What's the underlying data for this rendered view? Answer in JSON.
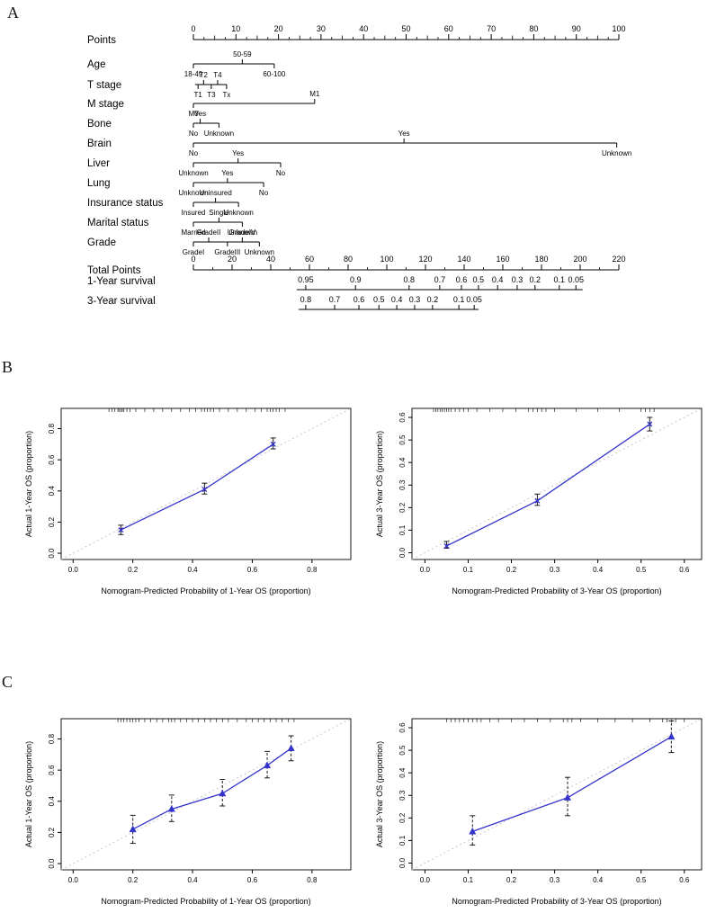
{
  "panels": {
    "a": "A",
    "b": "B",
    "c": "C"
  },
  "colors": {
    "line_blue": "#3434cc",
    "ref_gray": "#c8c8c8",
    "axis_black": "#000000",
    "err_black": "#1a1a1a"
  },
  "nomogram": {
    "points_axis": {
      "label": "Points",
      "min": 0,
      "max": 100,
      "step": 10,
      "minor": 2.5
    },
    "rows": [
      {
        "label": "Age",
        "start": 0,
        "end": 19,
        "ticks": [
          {
            "pos": 0,
            "text": "18-49",
            "side": "below"
          },
          {
            "pos": 11.5,
            "text": "50-59",
            "side": "above"
          },
          {
            "pos": 19,
            "text": "60-100",
            "side": "below"
          }
        ]
      },
      {
        "label": "T stage",
        "start": 0.4,
        "end": 7.8,
        "ticks": [
          {
            "pos": 1.1,
            "text": "T1",
            "side": "below"
          },
          {
            "pos": 2.4,
            "text": "T2",
            "side": "above"
          },
          {
            "pos": 4.2,
            "text": "T3",
            "side": "below"
          },
          {
            "pos": 5.7,
            "text": "T4",
            "side": "above"
          },
          {
            "pos": 7.8,
            "text": "Tx",
            "side": "below"
          }
        ]
      },
      {
        "label": "M stage",
        "start": 0,
        "end": 28.5,
        "ticks": [
          {
            "pos": 0,
            "text": "M0",
            "side": "below"
          },
          {
            "pos": 28.5,
            "text": "M1",
            "side": "above"
          }
        ]
      },
      {
        "label": "Bone",
        "start": 0,
        "end": 6,
        "ticks": [
          {
            "pos": 0,
            "text": "No",
            "side": "below"
          },
          {
            "pos": 1.6,
            "text": "Yes",
            "side": "above"
          },
          {
            "pos": 6,
            "text": "Unknown",
            "side": "below"
          }
        ]
      },
      {
        "label": "Brain",
        "start": 0,
        "end": 99.5,
        "ticks": [
          {
            "pos": 0,
            "text": "No",
            "side": "below"
          },
          {
            "pos": 49.5,
            "text": "Yes",
            "side": "above"
          },
          {
            "pos": 99.5,
            "text": "Unknown",
            "side": "below"
          }
        ]
      },
      {
        "label": "Liver",
        "start": 0,
        "end": 20.5,
        "ticks": [
          {
            "pos": 0,
            "text": "Unknown",
            "side": "below"
          },
          {
            "pos": 10.5,
            "text": "Yes",
            "side": "above"
          },
          {
            "pos": 20.5,
            "text": "No",
            "side": "below"
          }
        ]
      },
      {
        "label": "Lung",
        "start": 0,
        "end": 16.5,
        "ticks": [
          {
            "pos": 0,
            "text": "Unknown",
            "side": "below"
          },
          {
            "pos": 8,
            "text": "Yes",
            "side": "above"
          },
          {
            "pos": 16.5,
            "text": "No",
            "side": "below"
          }
        ]
      },
      {
        "label": "Insurance status",
        "start": 0,
        "end": 10.6,
        "ticks": [
          {
            "pos": 0,
            "text": "Insured",
            "side": "below"
          },
          {
            "pos": 5.2,
            "text": "Uninsured",
            "side": "above"
          },
          {
            "pos": 10.6,
            "text": "Unknown",
            "side": "below"
          }
        ]
      },
      {
        "label": "Marital status",
        "start": 0,
        "end": 11.5,
        "ticks": [
          {
            "pos": 0,
            "text": "Married",
            "side": "below"
          },
          {
            "pos": 6,
            "text": "Single",
            "side": "above"
          },
          {
            "pos": 11.5,
            "text": "Unknown",
            "side": "below"
          }
        ]
      },
      {
        "label": "Grade",
        "start": 0,
        "end": 15.5,
        "ticks": [
          {
            "pos": 0,
            "text": "GradeI",
            "side": "below"
          },
          {
            "pos": 3.6,
            "text": "GradeII",
            "side": "above"
          },
          {
            "pos": 8,
            "text": "GradeIII",
            "side": "below"
          },
          {
            "pos": 11.5,
            "text": "GradeIV",
            "side": "above"
          },
          {
            "pos": 15.5,
            "text": "Unknown",
            "side": "below"
          }
        ]
      }
    ],
    "total_points_axis": {
      "label": "Total Points",
      "min": 0,
      "max": 220,
      "step": 20
    },
    "survival_axes": [
      {
        "label": "1-Year survival",
        "start": 24.3,
        "end": 91.5,
        "ticks": [
          {
            "pos": 26.4,
            "text": "0.95"
          },
          {
            "pos": 38.1,
            "text": "0.9"
          },
          {
            "pos": 50.7,
            "text": "0.8"
          },
          {
            "pos": 57.9,
            "text": "0.7"
          },
          {
            "pos": 63.0,
            "text": "0.6"
          },
          {
            "pos": 67.0,
            "text": "0.5"
          },
          {
            "pos": 71.5,
            "text": "0.4"
          },
          {
            "pos": 76.1,
            "text": "0.3"
          },
          {
            "pos": 80.3,
            "text": "0.2"
          },
          {
            "pos": 86.0,
            "text": "0.1"
          },
          {
            "pos": 89.9,
            "text": "0.05"
          }
        ]
      },
      {
        "label": "3-Year survival",
        "start": 24.7,
        "end": 67.0,
        "ticks": [
          {
            "pos": 26.4,
            "text": "0.8"
          },
          {
            "pos": 33.2,
            "text": "0.7"
          },
          {
            "pos": 38.9,
            "text": "0.6"
          },
          {
            "pos": 43.6,
            "text": "0.5"
          },
          {
            "pos": 47.8,
            "text": "0.4"
          },
          {
            "pos": 52.0,
            "text": "0.3"
          },
          {
            "pos": 56.2,
            "text": "0.2"
          },
          {
            "pos": 62.4,
            "text": "0.1"
          },
          {
            "pos": 66.0,
            "text": "0.05"
          }
        ]
      }
    ]
  },
  "chart_data": [
    {
      "id": "cal-b1",
      "type": "line",
      "panel": "B",
      "marker": "cross",
      "err_style": "solid",
      "xlabel": "Nomogram-Predicted Probability of 1-Year OS (proportion)",
      "ylabel": "Actual 1-Year OS (proportion)",
      "xlim": [
        -0.04,
        0.93
      ],
      "ylim": [
        -0.04,
        0.93
      ],
      "xticks": [
        "0.0",
        "0.2",
        "0.4",
        "0.6",
        "0.8"
      ],
      "yticks": [
        "0.0",
        "0.2",
        "0.4",
        "0.6",
        "0.8"
      ],
      "x": [
        0.16,
        0.44,
        0.67
      ],
      "y": [
        0.15,
        0.41,
        0.7
      ],
      "err_low": [
        0.12,
        0.38,
        0.67
      ],
      "err_high": [
        0.18,
        0.45,
        0.74
      ],
      "rug": [
        0.12,
        0.13,
        0.14,
        0.15,
        0.155,
        0.16,
        0.165,
        0.17,
        0.18,
        0.19,
        0.21,
        0.24,
        0.27,
        0.3,
        0.33,
        0.36,
        0.39,
        0.41,
        0.43,
        0.44,
        0.45,
        0.46,
        0.47,
        0.49,
        0.52,
        0.55,
        0.58,
        0.61,
        0.63,
        0.65,
        0.66,
        0.67,
        0.68,
        0.69,
        0.71
      ]
    },
    {
      "id": "cal-b2",
      "type": "line",
      "panel": "B",
      "marker": "cross",
      "err_style": "solid",
      "xlabel": "Nomogram-Predicted Probability of 3-Year OS (proportion)",
      "ylabel": "Actual 3-Year OS (proportion)",
      "xlim": [
        -0.03,
        0.64
      ],
      "ylim": [
        -0.03,
        0.64
      ],
      "xticks": [
        "0.0",
        "0.1",
        "0.2",
        "0.3",
        "0.4",
        "0.5",
        "0.6"
      ],
      "yticks": [
        "0.0",
        "0.1",
        "0.2",
        "0.3",
        "0.4",
        "0.5",
        "0.6"
      ],
      "x": [
        0.05,
        0.26,
        0.52
      ],
      "y": [
        0.03,
        0.23,
        0.57
      ],
      "err_low": [
        0.02,
        0.21,
        0.54
      ],
      "err_high": [
        0.05,
        0.26,
        0.6
      ],
      "rug": [
        0.02,
        0.025,
        0.03,
        0.035,
        0.04,
        0.045,
        0.05,
        0.055,
        0.06,
        0.07,
        0.08,
        0.09,
        0.1,
        0.12,
        0.15,
        0.18,
        0.21,
        0.24,
        0.25,
        0.26,
        0.27,
        0.28,
        0.3,
        0.35,
        0.4,
        0.45,
        0.5,
        0.51,
        0.52,
        0.53
      ]
    },
    {
      "id": "cal-c1",
      "type": "line",
      "panel": "C",
      "marker": "triangle",
      "err_style": "dashed",
      "xlabel": "Nomogram-Predicted Probability of 1-Year OS (proportion)",
      "ylabel": "Actual 1-Year OS (proportion)",
      "xlim": [
        -0.04,
        0.93
      ],
      "ylim": [
        -0.04,
        0.93
      ],
      "xticks": [
        "0.0",
        "0.2",
        "0.4",
        "0.6",
        "0.8"
      ],
      "yticks": [
        "0.0",
        "0.2",
        "0.4",
        "0.6",
        "0.8"
      ],
      "x": [
        0.2,
        0.33,
        0.5,
        0.65,
        0.73
      ],
      "y": [
        0.22,
        0.35,
        0.45,
        0.63,
        0.74
      ],
      "err_low": [
        0.13,
        0.27,
        0.37,
        0.55,
        0.66
      ],
      "err_high": [
        0.31,
        0.44,
        0.54,
        0.72,
        0.82
      ],
      "rug": [
        0.15,
        0.16,
        0.17,
        0.18,
        0.19,
        0.2,
        0.21,
        0.22,
        0.24,
        0.26,
        0.28,
        0.3,
        0.32,
        0.33,
        0.34,
        0.36,
        0.38,
        0.4,
        0.42,
        0.44,
        0.46,
        0.48,
        0.5,
        0.52,
        0.55,
        0.58,
        0.6,
        0.62,
        0.64,
        0.66,
        0.68,
        0.7,
        0.72,
        0.74
      ]
    },
    {
      "id": "cal-c2",
      "type": "line",
      "panel": "C",
      "marker": "triangle",
      "err_style": "dashed",
      "xlabel": "Nomogram-Predicted Probability of 3-Year OS (proportion)",
      "ylabel": "Actual 3-Year OS (proportion)",
      "xlim": [
        -0.03,
        0.64
      ],
      "ylim": [
        -0.03,
        0.64
      ],
      "xticks": [
        "0.0",
        "0.1",
        "0.2",
        "0.3",
        "0.4",
        "0.5",
        "0.6"
      ],
      "yticks": [
        "0.0",
        "0.1",
        "0.2",
        "0.3",
        "0.4",
        "0.5",
        "0.6"
      ],
      "x": [
        0.11,
        0.33,
        0.57
      ],
      "y": [
        0.14,
        0.29,
        0.56
      ],
      "err_low": [
        0.08,
        0.21,
        0.49
      ],
      "err_high": [
        0.21,
        0.38,
        0.63
      ],
      "rug": [
        0.05,
        0.06,
        0.07,
        0.08,
        0.09,
        0.1,
        0.11,
        0.12,
        0.13,
        0.15,
        0.17,
        0.2,
        0.23,
        0.26,
        0.29,
        0.32,
        0.33,
        0.34,
        0.36,
        0.4,
        0.44,
        0.48,
        0.52,
        0.55,
        0.56,
        0.57,
        0.58,
        0.6
      ]
    }
  ]
}
